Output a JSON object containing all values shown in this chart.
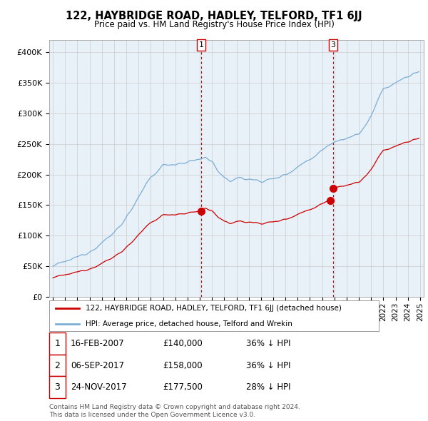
{
  "title": "122, HAYBRIDGE ROAD, HADLEY, TELFORD, TF1 6JJ",
  "subtitle": "Price paid vs. HM Land Registry's House Price Index (HPI)",
  "legend_label_red": "122, HAYBRIDGE ROAD, HADLEY, TELFORD, TF1 6JJ (detached house)",
  "legend_label_blue": "HPI: Average price, detached house, Telford and Wrekin",
  "footer1": "Contains HM Land Registry data © Crown copyright and database right 2024.",
  "footer2": "This data is licensed under the Open Government Licence v3.0.",
  "transactions": [
    {
      "num": "1",
      "date": "16-FEB-2007",
      "price": "£140,000",
      "pct": "36% ↓ HPI",
      "year": 2007.12
    },
    {
      "num": "2",
      "date": "06-SEP-2017",
      "price": "£158,000",
      "pct": "36% ↓ HPI",
      "year": 2017.68
    },
    {
      "num": "3",
      "date": "24-NOV-2017",
      "price": "£177,500",
      "pct": "28% ↓ HPI",
      "year": 2017.9
    }
  ],
  "sale_prices": [
    140000,
    158000,
    177500
  ],
  "ylim": [
    0,
    420000
  ],
  "yticks": [
    0,
    50000,
    100000,
    150000,
    200000,
    250000,
    300000,
    350000,
    400000
  ],
  "xlim_start": 1994.7,
  "xlim_end": 2025.3,
  "red_color": "#cc0000",
  "blue_color": "#7aaed6",
  "vline_color": "#cc0000",
  "background_color": "#ffffff",
  "grid_color": "#cccccc",
  "chart_bg": "#e8f0f8"
}
